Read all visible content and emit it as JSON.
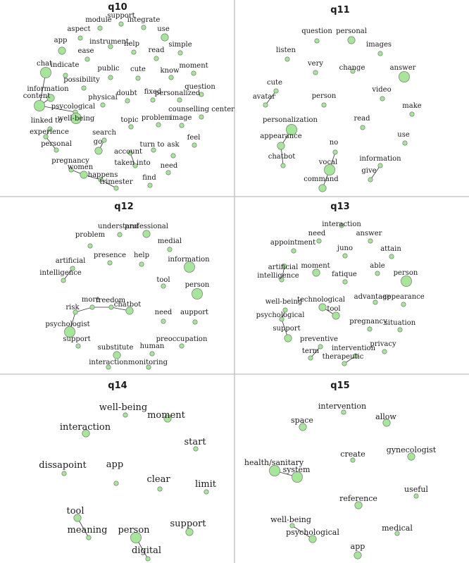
{
  "panels": [
    {
      "id": "q10",
      "title": "q10",
      "nodes": [
        {
          "id": "support",
          "label": "support",
          "size": "s"
        },
        {
          "id": "module",
          "label": "module",
          "size": "s"
        },
        {
          "id": "integrate",
          "label": "integrate",
          "size": "s"
        },
        {
          "id": "aspect",
          "label": "aspect",
          "size": "s"
        },
        {
          "id": "use",
          "label": "use",
          "size": "m"
        },
        {
          "id": "app",
          "label": "app",
          "size": "m"
        },
        {
          "id": "instrument",
          "label": "instrument",
          "size": "s"
        },
        {
          "id": "help",
          "label": "help",
          "size": "s"
        },
        {
          "id": "simple",
          "label": "simple",
          "size": "s"
        },
        {
          "id": "ease",
          "label": "ease",
          "size": "s"
        },
        {
          "id": "read",
          "label": "read",
          "size": "s"
        },
        {
          "id": "chat",
          "label": "chat",
          "size": "l"
        },
        {
          "id": "indicate",
          "label": "indicate",
          "size": "s"
        },
        {
          "id": "public",
          "label": "public",
          "size": "s"
        },
        {
          "id": "cute",
          "label": "cute",
          "size": "s"
        },
        {
          "id": "know",
          "label": "know",
          "size": "s"
        },
        {
          "id": "moment",
          "label": "moment",
          "size": "s"
        },
        {
          "id": "possibility",
          "label": "possibility",
          "size": "s"
        },
        {
          "id": "information",
          "label": "information",
          "size": "m"
        },
        {
          "id": "question",
          "label": "question",
          "size": "s"
        },
        {
          "id": "content",
          "label": "content",
          "size": "l"
        },
        {
          "id": "physical",
          "label": "physical",
          "size": "s"
        },
        {
          "id": "doubt",
          "label": "doubt",
          "size": "s"
        },
        {
          "id": "fixed",
          "label": "fixed",
          "size": "s"
        },
        {
          "id": "personalized",
          "label": "personalized",
          "size": "s"
        },
        {
          "id": "psycological",
          "label": "psycological",
          "size": "s"
        },
        {
          "id": "counselling",
          "label": "counselling center",
          "size": "s"
        },
        {
          "id": "wellbeing",
          "label": "well-being",
          "size": "l"
        },
        {
          "id": "linkedto",
          "label": "linked to",
          "size": "s"
        },
        {
          "id": "topic",
          "label": "topic",
          "size": "s"
        },
        {
          "id": "problem",
          "label": "problem",
          "size": "s"
        },
        {
          "id": "image",
          "label": "image",
          "size": "s"
        },
        {
          "id": "experience",
          "label": "experience",
          "size": "s"
        },
        {
          "id": "search",
          "label": "search",
          "size": "s"
        },
        {
          "id": "feel",
          "label": "feel",
          "size": "s"
        },
        {
          "id": "go",
          "label": "go",
          "size": "m"
        },
        {
          "id": "personal",
          "label": "personal",
          "size": "s"
        },
        {
          "id": "turnto",
          "label": "turn to",
          "size": "s"
        },
        {
          "id": "account",
          "label": "account",
          "size": "s"
        },
        {
          "id": "ask",
          "label": "ask",
          "size": "s"
        },
        {
          "id": "pregnancy",
          "label": "pregnancy",
          "size": "s"
        },
        {
          "id": "takeninto",
          "label": "taken into",
          "size": "s"
        },
        {
          "id": "need",
          "label": "need",
          "size": "s"
        },
        {
          "id": "women",
          "label": "women",
          "size": "m"
        },
        {
          "id": "happens",
          "label": "happens",
          "size": "s"
        },
        {
          "id": "find",
          "label": "find",
          "size": "s"
        },
        {
          "id": "trimester",
          "label": "trimester",
          "size": "s"
        }
      ],
      "edges": [
        [
          "chat",
          "content"
        ],
        [
          "content",
          "information"
        ],
        [
          "content",
          "psycological"
        ],
        [
          "psycological",
          "wellbeing"
        ],
        [
          "linkedto",
          "experience"
        ],
        [
          "experience",
          "personal"
        ],
        [
          "pregnancy",
          "women"
        ],
        [
          "women",
          "happens"
        ],
        [
          "happens",
          "trimester"
        ],
        [
          "account",
          "takeninto"
        ],
        [
          "search",
          "go"
        ]
      ]
    },
    {
      "id": "q11",
      "title": "q11",
      "nodes": [
        {
          "id": "question",
          "label": "question",
          "size": "s"
        },
        {
          "id": "personal",
          "label": "personal",
          "size": "m"
        },
        {
          "id": "images",
          "label": "images",
          "size": "s"
        },
        {
          "id": "listen",
          "label": "listen",
          "size": "s"
        },
        {
          "id": "very",
          "label": "very",
          "size": "s"
        },
        {
          "id": "change",
          "label": "change",
          "size": "s"
        },
        {
          "id": "answer",
          "label": "answer",
          "size": "l"
        },
        {
          "id": "cute",
          "label": "cute",
          "size": "s"
        },
        {
          "id": "person",
          "label": "person",
          "size": "s"
        },
        {
          "id": "video",
          "label": "video",
          "size": "s"
        },
        {
          "id": "avatar",
          "label": "avatar",
          "size": "s"
        },
        {
          "id": "make",
          "label": "make",
          "size": "s"
        },
        {
          "id": "read",
          "label": "read",
          "size": "s"
        },
        {
          "id": "personalization",
          "label": "personalization",
          "size": "l"
        },
        {
          "id": "appearance",
          "label": "appearance",
          "size": "m"
        },
        {
          "id": "use",
          "label": "use",
          "size": "s"
        },
        {
          "id": "no",
          "label": "no",
          "size": "s"
        },
        {
          "id": "chatbot",
          "label": "chatbot",
          "size": "s"
        },
        {
          "id": "information",
          "label": "information",
          "size": "s"
        },
        {
          "id": "vocal",
          "label": "vocal",
          "size": "l"
        },
        {
          "id": "give",
          "label": "give",
          "size": "s"
        },
        {
          "id": "command",
          "label": "command",
          "size": "m"
        }
      ],
      "edges": [
        [
          "cute",
          "avatar"
        ],
        [
          "personalization",
          "appearance"
        ],
        [
          "appearance",
          "chatbot"
        ],
        [
          "no",
          "vocal"
        ],
        [
          "vocal",
          "command"
        ],
        [
          "information",
          "give"
        ]
      ]
    },
    {
      "id": "q12",
      "title": "q12",
      "nodes": [
        {
          "id": "understand",
          "label": "understand",
          "size": "s"
        },
        {
          "id": "professional",
          "label": "professional",
          "size": "m"
        },
        {
          "id": "problem",
          "label": "problem",
          "size": "s"
        },
        {
          "id": "medial",
          "label": "medial",
          "size": "s"
        },
        {
          "id": "presence",
          "label": "presence",
          "size": "s"
        },
        {
          "id": "help",
          "label": "help",
          "size": "s"
        },
        {
          "id": "artificial",
          "label": "artificial",
          "size": "s"
        },
        {
          "id": "information",
          "label": "information",
          "size": "l"
        },
        {
          "id": "intelligence",
          "label": "intelligence",
          "size": "s"
        },
        {
          "id": "tool",
          "label": "tool",
          "size": "s"
        },
        {
          "id": "person",
          "label": "person",
          "size": "l"
        },
        {
          "id": "more",
          "label": "more",
          "size": "s"
        },
        {
          "id": "freedom",
          "label": "freedom",
          "size": "s"
        },
        {
          "id": "chatbot",
          "label": "chatbot",
          "size": "m"
        },
        {
          "id": "risk",
          "label": "risk",
          "size": "s"
        },
        {
          "id": "need",
          "label": "need",
          "size": "s"
        },
        {
          "id": "aupport",
          "label": "aupport",
          "size": "s"
        },
        {
          "id": "psychologist",
          "label": "psychologist",
          "size": "l"
        },
        {
          "id": "support",
          "label": "support",
          "size": "s"
        },
        {
          "id": "preoccupation",
          "label": "preoccupation",
          "size": "s"
        },
        {
          "id": "substitute",
          "label": "substitute",
          "size": "m"
        },
        {
          "id": "human",
          "label": "human",
          "size": "s"
        },
        {
          "id": "interaction",
          "label": "interaction",
          "size": "s"
        },
        {
          "id": "monitoring",
          "label": "monitoring",
          "size": "s"
        }
      ],
      "edges": [
        [
          "artificial",
          "intelligence"
        ],
        [
          "risk",
          "more"
        ],
        [
          "more",
          "freedom"
        ],
        [
          "freedom",
          "chatbot"
        ],
        [
          "risk",
          "psychologist"
        ]
      ]
    },
    {
      "id": "q13",
      "title": "q13",
      "nodes": [
        {
          "id": "interaction",
          "label": "interaction",
          "size": "s"
        },
        {
          "id": "need",
          "label": "need",
          "size": "s"
        },
        {
          "id": "answer",
          "label": "answer",
          "size": "s"
        },
        {
          "id": "appointment",
          "label": "appointment",
          "size": "s"
        },
        {
          "id": "juno",
          "label": "juno",
          "size": "s"
        },
        {
          "id": "attain",
          "label": "attain",
          "size": "s"
        },
        {
          "id": "artificial",
          "label": "artificial",
          "size": "s"
        },
        {
          "id": "moment",
          "label": "moment",
          "size": "m"
        },
        {
          "id": "able",
          "label": "able",
          "size": "s"
        },
        {
          "id": "person",
          "label": "person",
          "size": "l"
        },
        {
          "id": "intelligence",
          "label": "intelligence",
          "size": "s"
        },
        {
          "id": "fatique",
          "label": "fatique",
          "size": "s"
        },
        {
          "id": "technological",
          "label": "technological",
          "size": "m"
        },
        {
          "id": "advantage",
          "label": "advantage",
          "size": "s"
        },
        {
          "id": "appearance",
          "label": "appearance",
          "size": "s"
        },
        {
          "id": "wellbeing",
          "label": "well-being",
          "size": "s"
        },
        {
          "id": "tool",
          "label": "tool",
          "size": "m"
        },
        {
          "id": "psychological",
          "label": "psychological",
          "size": "s"
        },
        {
          "id": "pregnancy",
          "label": "pregnancy",
          "size": "s"
        },
        {
          "id": "situation",
          "label": "situation",
          "size": "s"
        },
        {
          "id": "support",
          "label": "support",
          "size": "m"
        },
        {
          "id": "preventive",
          "label": "preventive",
          "size": "s"
        },
        {
          "id": "privacy",
          "label": "privacy",
          "size": "s"
        },
        {
          "id": "intervention",
          "label": "intervention",
          "size": "s"
        },
        {
          "id": "term",
          "label": "term",
          "size": "s"
        },
        {
          "id": "therapeutic",
          "label": "therapeutic",
          "size": "s"
        }
      ],
      "edges": [
        [
          "artificial",
          "intelligence"
        ],
        [
          "technological",
          "tool"
        ],
        [
          "wellbeing",
          "psychological"
        ],
        [
          "psychological",
          "support"
        ],
        [
          "preventive",
          "term"
        ],
        [
          "intervention",
          "therapeutic"
        ]
      ]
    },
    {
      "id": "q14",
      "title": "q14",
      "nodes": [
        {
          "id": "wellbeing",
          "label": "well-being",
          "size": "s"
        },
        {
          "id": "moment",
          "label": "moment",
          "size": "m"
        },
        {
          "id": "interaction",
          "label": "interaction",
          "size": "m"
        },
        {
          "id": "start",
          "label": "start",
          "size": "s"
        },
        {
          "id": "dissapoint",
          "label": "dissapoint",
          "size": "s"
        },
        {
          "id": "app",
          "label": "app",
          "size": "s"
        },
        {
          "id": "clear",
          "label": "clear",
          "size": "s"
        },
        {
          "id": "limit",
          "label": "limit",
          "size": "s"
        },
        {
          "id": "tool",
          "label": "tool",
          "size": "m"
        },
        {
          "id": "meaning",
          "label": "meaning",
          "size": "s"
        },
        {
          "id": "person",
          "label": "person",
          "size": "l"
        },
        {
          "id": "support",
          "label": "support",
          "size": "m"
        },
        {
          "id": "digital",
          "label": "digital",
          "size": "s"
        }
      ],
      "edges": [
        [
          "tool",
          "meaning"
        ],
        [
          "person",
          "digital"
        ]
      ]
    },
    {
      "id": "q15",
      "title": "q15",
      "nodes": [
        {
          "id": "intervention",
          "label": "intervention",
          "size": "s"
        },
        {
          "id": "space",
          "label": "space",
          "size": "m"
        },
        {
          "id": "allow",
          "label": "allow",
          "size": "m"
        },
        {
          "id": "gynecologist",
          "label": "gynecologist",
          "size": "m"
        },
        {
          "id": "create",
          "label": "create",
          "size": "s"
        },
        {
          "id": "healthsanitary",
          "label": "health/sanitary",
          "size": "l"
        },
        {
          "id": "system",
          "label": "system",
          "size": "l"
        },
        {
          "id": "useful",
          "label": "useful",
          "size": "s"
        },
        {
          "id": "reference",
          "label": "reference",
          "size": "m"
        },
        {
          "id": "wellbeing",
          "label": "well-being",
          "size": "s"
        },
        {
          "id": "psychological",
          "label": "psychological",
          "size": "m"
        },
        {
          "id": "medical",
          "label": "medical",
          "size": "s"
        },
        {
          "id": "app",
          "label": "app",
          "size": "m"
        }
      ],
      "edges": [
        [
          "healthsanitary",
          "system"
        ],
        [
          "wellbeing",
          "psychological"
        ]
      ]
    }
  ]
}
